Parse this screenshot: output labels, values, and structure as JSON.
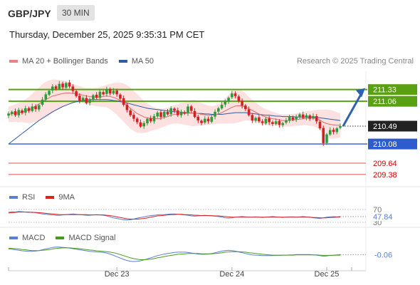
{
  "header": {
    "symbol": "GBP/JPY",
    "interval": "30 MIN",
    "datetime": "Thursday, December 25, 2025 9:35:31 PM CET",
    "copyright": "Research © 2025 Trading Central"
  },
  "legends": {
    "price": [
      {
        "name": "MA 20 + Bollinger Bands",
        "color": "#f08080"
      },
      {
        "name": "MA 50",
        "color": "#2e5ba3"
      }
    ],
    "rsi": [
      {
        "name": "RSI",
        "color": "#5b7fd3"
      },
      {
        "name": "9MA",
        "color": "#e02020"
      }
    ],
    "macd": [
      {
        "name": "MACD",
        "color": "#5b7fd3"
      },
      {
        "name": "MACD Signal",
        "color": "#4a9a1a"
      }
    ]
  },
  "colors": {
    "bull": "#2e9a3a",
    "bear": "#d42020",
    "resistance": "#5aa013",
    "support_blue": "#2e5ccc",
    "support_red": "#e05050",
    "band_fill": "#fde0e0",
    "ma20": "#e06a6a",
    "ma50": "#2e5ba3",
    "arrow": "#2e62b0"
  },
  "chart_data": [
    {
      "type": "candlestick",
      "title": "GBP/JPY",
      "ylim": [
        209.1,
        211.75
      ],
      "x_ticks": [
        "Dec 23",
        "Dec 24",
        "Dec 25"
      ],
      "current_price": 210.49,
      "price_labels": [
        {
          "value": 211.33,
          "label": "211.33",
          "kind": "resistance"
        },
        {
          "value": 211.06,
          "label": "211.06",
          "kind": "resistance"
        },
        {
          "value": 210.49,
          "label": "210.49",
          "kind": "current"
        },
        {
          "value": 210.08,
          "label": "210.08",
          "kind": "support"
        },
        {
          "value": 209.64,
          "label": "209.64",
          "kind": "support"
        },
        {
          "value": 209.38,
          "label": "209.38",
          "kind": "support"
        }
      ],
      "projection": {
        "from": 210.49,
        "to": 211.33
      },
      "series": [
        {
          "name": "Close",
          "values": [
            210.78,
            210.82,
            210.74,
            210.86,
            210.79,
            210.9,
            210.84,
            210.94,
            210.88,
            210.97,
            211.1,
            211.22,
            211.3,
            211.4,
            211.35,
            211.46,
            211.38,
            211.48,
            211.4,
            211.3,
            211.18,
            211.08,
            211.14,
            211.02,
            211.1,
            211.2,
            211.14,
            211.28,
            211.22,
            211.34,
            211.24,
            211.3,
            211.22,
            211.12,
            210.98,
            210.86,
            210.74,
            210.66,
            210.58,
            210.48,
            210.56,
            210.66,
            210.6,
            210.72,
            210.8,
            210.7,
            210.82,
            210.76,
            210.9,
            210.84,
            210.74,
            210.82,
            210.78,
            210.94,
            210.84,
            210.7,
            210.62,
            210.56,
            210.66,
            210.6,
            210.7,
            210.82,
            210.9,
            210.98,
            211.06,
            211.14,
            211.24,
            211.18,
            211.06,
            210.96,
            210.88,
            210.74,
            210.62,
            210.68,
            210.6,
            210.56,
            210.66,
            210.58,
            210.54,
            210.6,
            210.52,
            210.56,
            210.62,
            210.7,
            210.64,
            210.7,
            210.76,
            210.68,
            210.74,
            210.66,
            210.72,
            210.6,
            210.44,
            210.1,
            210.3,
            210.4,
            210.36,
            210.44,
            210.49
          ]
        },
        {
          "name": "MA 20",
          "values": [
            210.76,
            210.77,
            210.79,
            210.8,
            210.82,
            210.84,
            210.86,
            210.9,
            210.95,
            211.0,
            211.05,
            211.1,
            211.14,
            211.18,
            211.2,
            211.22,
            211.24,
            211.25,
            211.25,
            211.24,
            211.23,
            211.22,
            211.2,
            211.18,
            211.17,
            211.16,
            211.16,
            211.16,
            211.17,
            211.18,
            211.17,
            211.15,
            211.12,
            211.08,
            211.03,
            210.97,
            210.9,
            210.84,
            210.78,
            210.74,
            210.7,
            210.68,
            210.67,
            210.66,
            210.66,
            210.67,
            210.69,
            210.71,
            210.74,
            210.76,
            210.77,
            210.78,
            210.78,
            210.79,
            210.79,
            210.79,
            210.78,
            210.76,
            210.75,
            210.74,
            210.74,
            210.75,
            210.77,
            210.8,
            210.84,
            210.88,
            210.92,
            210.95,
            210.96,
            210.95,
            210.93,
            210.89,
            210.85,
            210.81,
            210.77,
            210.73,
            210.7,
            210.68,
            210.66,
            210.65,
            210.63,
            210.62,
            210.62,
            210.62,
            210.63,
            210.64,
            210.65,
            210.66,
            210.67,
            210.67,
            210.67,
            210.66,
            210.63,
            210.58,
            210.55,
            210.53,
            210.52,
            210.51,
            210.51
          ]
        },
        {
          "name": "MA 50",
          "values": [
            210.08,
            210.14,
            210.2,
            210.26,
            210.32,
            210.38,
            210.44,
            210.5,
            210.56,
            210.62,
            210.67,
            210.72,
            210.77,
            210.82,
            210.86,
            210.9,
            210.94,
            210.97,
            211.0,
            211.03,
            211.05,
            211.07,
            211.08,
            211.09,
            211.1,
            211.1,
            211.1,
            211.1,
            211.1,
            211.1,
            211.09,
            211.08,
            211.07,
            211.05,
            211.04,
            211.02,
            211.0,
            210.98,
            210.96,
            210.94,
            210.92,
            210.9,
            210.89,
            210.88,
            210.87,
            210.86,
            210.85,
            210.84,
            210.83,
            210.82,
            210.82,
            210.81,
            210.8,
            210.8,
            210.79,
            210.79,
            210.78,
            210.78,
            210.77,
            210.77,
            210.76,
            210.76,
            210.76,
            210.76,
            210.77,
            210.78,
            210.79,
            210.8,
            210.8,
            210.8,
            210.8,
            210.79,
            210.78,
            210.77,
            210.76,
            210.75,
            210.74,
            210.74,
            210.73,
            210.72,
            210.72,
            210.71,
            210.71,
            210.71,
            210.71,
            210.7,
            210.7,
            210.7,
            210.7,
            210.7,
            210.7,
            210.69,
            210.68,
            210.67,
            210.66,
            210.65,
            210.64,
            210.63,
            210.62
          ]
        },
        {
          "name": "BB width",
          "values": [
            0.18,
            0.19,
            0.2,
            0.22,
            0.24,
            0.27,
            0.3,
            0.33,
            0.36,
            0.38,
            0.4,
            0.41,
            0.4,
            0.38,
            0.36,
            0.33,
            0.3,
            0.27,
            0.24,
            0.22,
            0.2,
            0.19,
            0.18,
            0.18,
            0.19,
            0.2,
            0.21,
            0.22,
            0.24,
            0.26,
            0.29,
            0.33,
            0.37,
            0.41,
            0.44,
            0.46,
            0.47,
            0.46,
            0.44,
            0.41,
            0.37,
            0.33,
            0.29,
            0.26,
            0.24,
            0.22,
            0.21,
            0.2,
            0.2,
            0.21,
            0.22,
            0.24,
            0.26,
            0.28,
            0.3,
            0.3,
            0.28,
            0.26,
            0.24,
            0.22,
            0.21,
            0.21,
            0.22,
            0.25,
            0.29,
            0.33,
            0.37,
            0.39,
            0.38,
            0.35,
            0.31,
            0.27,
            0.24,
            0.22,
            0.2,
            0.19,
            0.18,
            0.17,
            0.16,
            0.15,
            0.14,
            0.14,
            0.14,
            0.14,
            0.14,
            0.14,
            0.15,
            0.15,
            0.16,
            0.17,
            0.18,
            0.2,
            0.24,
            0.29,
            0.32,
            0.33,
            0.32,
            0.3,
            0.28
          ]
        }
      ]
    },
    {
      "type": "line",
      "title": "RSI",
      "ylim": [
        30,
        70
      ],
      "ticks": [
        "70",
        "30"
      ],
      "current": {
        "value": 47.84,
        "label": "47.84"
      },
      "series": [
        {
          "name": "RSI",
          "values": [
            61,
            63,
            62,
            64,
            63,
            62,
            61,
            62,
            60,
            58,
            56,
            55,
            54,
            53,
            52,
            52,
            53,
            54,
            55,
            56,
            55,
            54,
            53,
            52,
            52,
            53,
            54,
            53,
            52,
            50,
            47,
            44,
            42,
            40,
            38,
            37,
            38,
            40,
            43,
            45,
            47,
            49,
            51,
            52,
            53,
            54,
            54,
            55,
            56,
            56,
            55,
            54,
            53,
            52,
            50,
            49,
            50,
            51,
            52,
            51,
            50,
            49,
            48,
            46,
            44,
            43,
            44,
            46,
            47,
            48,
            47,
            46,
            46,
            47,
            46,
            45,
            46,
            47,
            48,
            47,
            46,
            45,
            46,
            47,
            47,
            46,
            47,
            48,
            47,
            46,
            44,
            43,
            42,
            44,
            46,
            47,
            48,
            47,
            48
          ]
        },
        {
          "name": "9MA",
          "values": [
            59,
            60,
            61,
            62,
            62,
            62,
            62,
            61,
            61,
            60,
            59,
            58,
            57,
            56,
            55,
            54,
            54,
            54,
            54,
            54,
            54,
            54,
            54,
            54,
            53,
            53,
            53,
            53,
            53,
            52,
            51,
            49,
            47,
            45,
            43,
            41,
            40,
            40,
            40,
            41,
            42,
            44,
            46,
            48,
            50,
            51,
            52,
            53,
            54,
            54,
            55,
            55,
            54,
            54,
            53,
            52,
            52,
            51,
            51,
            51,
            51,
            50,
            50,
            49,
            48,
            47,
            46,
            46,
            46,
            46,
            46,
            46,
            46,
            46,
            46,
            46,
            46,
            46,
            46,
            46,
            46,
            46,
            46,
            46,
            46,
            46,
            46,
            46,
            46,
            46,
            45,
            45,
            44,
            44,
            44,
            45,
            45,
            46,
            46
          ]
        }
      ]
    },
    {
      "type": "line",
      "title": "MACD",
      "ylim": [
        -0.45,
        0.4
      ],
      "current": {
        "value": -0.06,
        "label": "-0.06"
      },
      "series": [
        {
          "name": "MACD",
          "values": [
            0.15,
            0.14,
            0.12,
            0.1,
            0.08,
            0.07,
            0.06,
            0.06,
            0.07,
            0.09,
            0.12,
            0.15,
            0.18,
            0.21,
            0.22,
            0.22,
            0.21,
            0.2,
            0.18,
            0.16,
            0.14,
            0.12,
            0.1,
            0.08,
            0.06,
            0.05,
            0.04,
            0.03,
            0.02,
            0.0,
            -0.04,
            -0.09,
            -0.14,
            -0.19,
            -0.24,
            -0.28,
            -0.31,
            -0.32,
            -0.31,
            -0.29,
            -0.26,
            -0.22,
            -0.18,
            -0.14,
            -0.1,
            -0.07,
            -0.04,
            -0.02,
            0.0,
            0.02,
            0.03,
            0.03,
            0.03,
            0.02,
            0.0,
            -0.02,
            -0.04,
            -0.05,
            -0.05,
            -0.04,
            -0.02,
            0.01,
            0.04,
            0.07,
            0.09,
            0.1,
            0.09,
            0.07,
            0.04,
            0.01,
            -0.02,
            -0.05,
            -0.07,
            -0.08,
            -0.09,
            -0.1,
            -0.1,
            -0.1,
            -0.1,
            -0.09,
            -0.09,
            -0.08,
            -0.08,
            -0.07,
            -0.07,
            -0.06,
            -0.06,
            -0.06,
            -0.06,
            -0.06,
            -0.07,
            -0.08,
            -0.1,
            -0.12,
            -0.11,
            -0.09,
            -0.08,
            -0.07,
            -0.06
          ]
        },
        {
          "name": "MACD Signal",
          "values": [
            0.18,
            0.17,
            0.16,
            0.15,
            0.13,
            0.12,
            0.1,
            0.09,
            0.09,
            0.09,
            0.1,
            0.11,
            0.13,
            0.15,
            0.17,
            0.18,
            0.19,
            0.19,
            0.19,
            0.18,
            0.17,
            0.16,
            0.14,
            0.13,
            0.11,
            0.1,
            0.08,
            0.07,
            0.06,
            0.05,
            0.03,
            0.01,
            -0.02,
            -0.06,
            -0.1,
            -0.14,
            -0.18,
            -0.21,
            -0.23,
            -0.25,
            -0.25,
            -0.24,
            -0.23,
            -0.21,
            -0.18,
            -0.16,
            -0.13,
            -0.11,
            -0.09,
            -0.07,
            -0.05,
            -0.04,
            -0.03,
            -0.02,
            -0.02,
            -0.02,
            -0.02,
            -0.03,
            -0.03,
            -0.03,
            -0.03,
            -0.02,
            -0.01,
            0.01,
            0.03,
            0.04,
            0.05,
            0.05,
            0.05,
            0.04,
            0.03,
            0.01,
            0.0,
            -0.02,
            -0.03,
            -0.05,
            -0.06,
            -0.07,
            -0.08,
            -0.08,
            -0.08,
            -0.08,
            -0.08,
            -0.08,
            -0.08,
            -0.07,
            -0.07,
            -0.07,
            -0.07,
            -0.07,
            -0.07,
            -0.07,
            -0.08,
            -0.09,
            -0.09,
            -0.09,
            -0.09,
            -0.08,
            -0.08
          ]
        }
      ]
    }
  ]
}
